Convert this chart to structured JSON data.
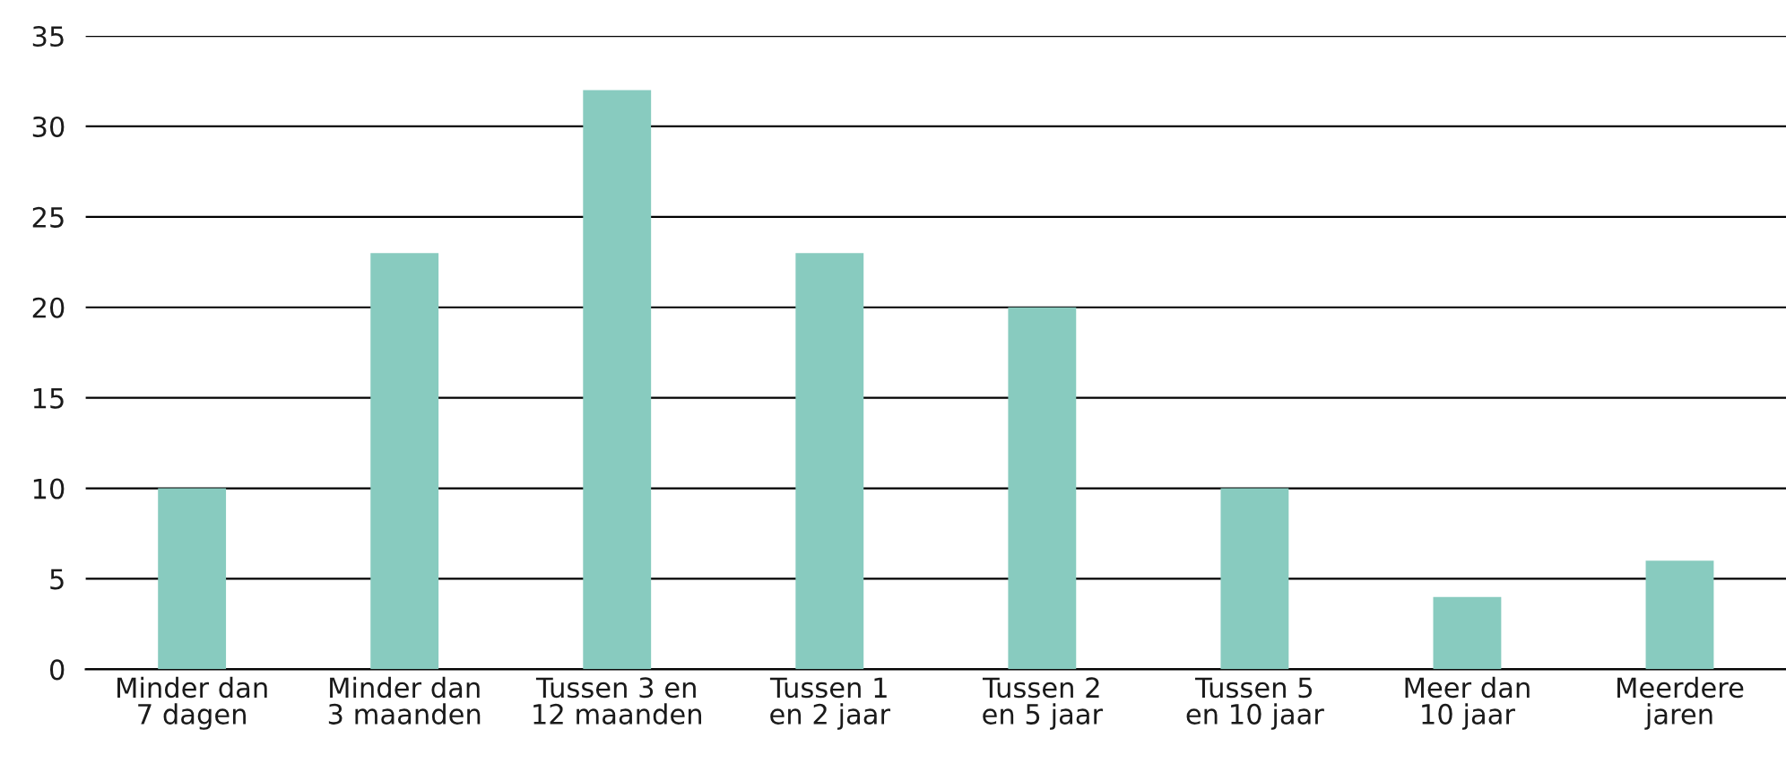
{
  "chart_data": {
    "type": "bar",
    "categories": [
      "Minder dan\n7 dagen",
      "Minder dan\n3 maanden",
      "Tussen 3 en\n12 maanden",
      "Tussen 1\nen 2 jaar",
      "Tussen 2\nen 5 jaar",
      "Tussen 5\nen 10 jaar",
      "Meer dan\n10 jaar",
      "Meerdere\njaren"
    ],
    "values": [
      10,
      23,
      32,
      23,
      20,
      10,
      4,
      6
    ],
    "color": "#88cbbf",
    "ylim": [
      0,
      35
    ],
    "yticks": [
      0,
      5,
      10,
      15,
      20,
      25,
      30,
      35
    ],
    "grid": "y",
    "legend": false
  }
}
